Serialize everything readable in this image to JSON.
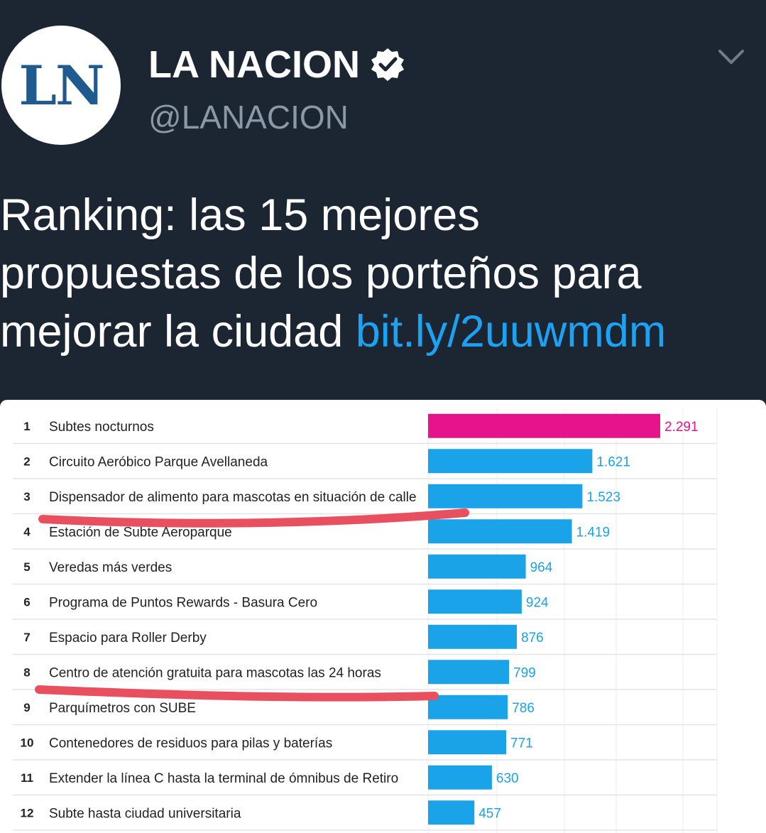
{
  "account": {
    "name": "LA NACION",
    "handle": "@LANACION",
    "avatar_text": "LN",
    "avatar_color": "#1f5b8f"
  },
  "tweet": {
    "text": "Ranking: las 15 mejores\npropuestas de los porteños para\nmejorar la ciudad ",
    "link": "bit.ly/2uuwmdm"
  },
  "icons": {
    "verified": "verified-badge-icon",
    "more": "chevron-down-icon"
  },
  "colors": {
    "bar_top": "#e6148a",
    "bar": "#1aa3e8",
    "link": "#1da1f2",
    "underline": "#e8505f"
  },
  "chart_data": {
    "type": "bar",
    "orientation": "horizontal",
    "ranks": [
      "1",
      "2",
      "3",
      "4",
      "5",
      "6",
      "7",
      "8",
      "9",
      "10",
      "11",
      "12"
    ],
    "categories": [
      "Subtes nocturnos",
      "Circuito Aeróbico Parque Avellaneda",
      "Dispensador de alimento para mascotas en situación de calle",
      "Estación de Subte Aeroparque",
      "Veredas más verdes",
      "Programa de Puntos Rewards - Basura Cero",
      "Espacio para Roller Derby",
      "Centro de atención gratuita para mascotas las 24 horas",
      "Parquímetros con SUBE",
      "Contenedores de residuos para pilas y baterías",
      "Extender la línea C hasta la terminal de ómnibus de Retiro",
      "Subte hasta ciudad universitaria"
    ],
    "values": [
      2291,
      1621,
      1523,
      1419,
      964,
      924,
      876,
      799,
      786,
      771,
      630,
      457
    ],
    "value_labels": [
      "2.291",
      "1.621",
      "1.523",
      "1.419",
      "964",
      "924",
      "876",
      "799",
      "786",
      "771",
      "630",
      "457"
    ],
    "grid": true,
    "highlighted_rows": [
      3,
      8
    ]
  }
}
